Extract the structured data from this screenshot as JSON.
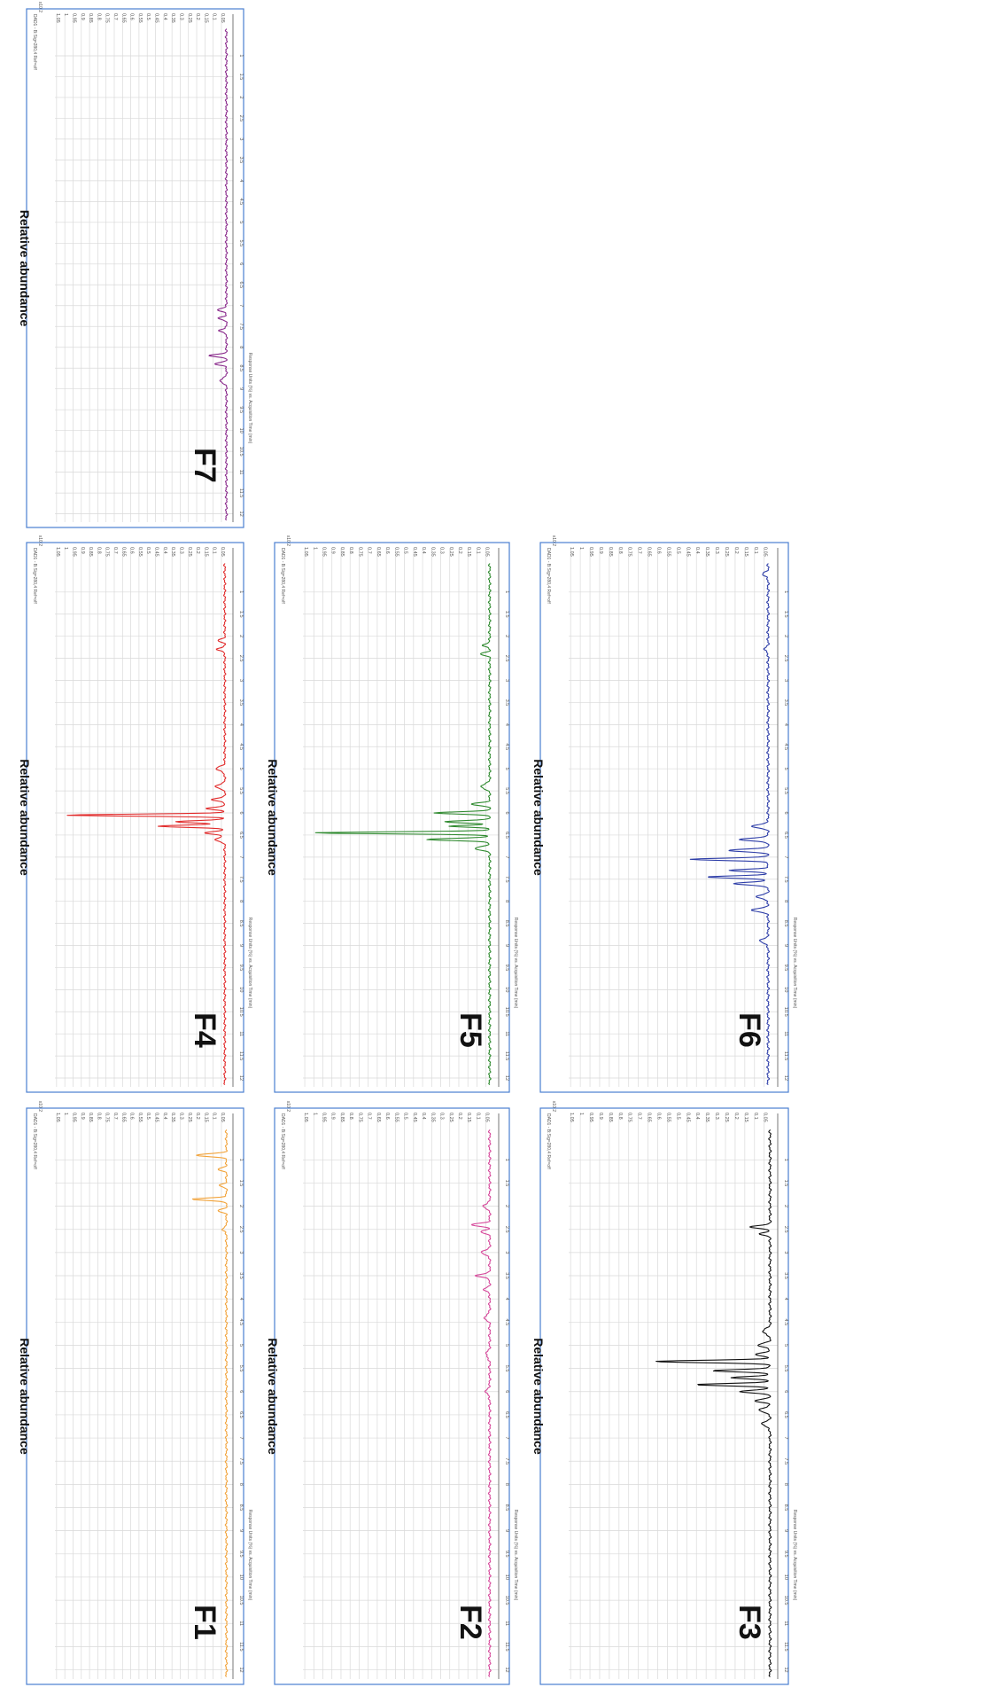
{
  "chart_data": [
    {
      "type": "line",
      "panel_label": "F1",
      "ylabel": "Relative abundance",
      "xlabel": "Response Units (%) vs. Acquisition Time (min)",
      "header": "DAD1 - B:Sig=280,4 Ref=off",
      "scale_note": "x10 2",
      "color": "#f2a33a",
      "xlim": [
        0,
        12.2
      ],
      "ylim": [
        -0.02,
        1.06
      ],
      "xticks": [
        "1",
        "1.5",
        "2",
        "2.5",
        "3",
        "3.5",
        "4",
        "4.5",
        "5",
        "5.5",
        "6",
        "6.5",
        "7",
        "7.5",
        "8",
        "8.5",
        "9",
        "9.5",
        "10",
        "10.5",
        "11",
        "11.5",
        "12"
      ],
      "yticks": [
        "0.05",
        "0.1",
        "0.15",
        "0.2",
        "0.25",
        "0.3",
        "0.35",
        "0.4",
        "0.45",
        "0.5",
        "0.55",
        "0.6",
        "0.65",
        "0.7",
        "0.75",
        "0.8",
        "0.85",
        "0.9",
        "0.95",
        "1",
        "1.05"
      ],
      "baseline": 0.02,
      "peaks": [
        [
          0.9,
          0.18,
          0.03
        ],
        [
          1.2,
          0.05,
          0.03
        ],
        [
          1.55,
          0.04,
          0.03
        ],
        [
          1.85,
          0.21,
          0.025
        ],
        [
          2.1,
          0.05,
          0.03
        ],
        [
          2.5,
          0.03,
          0.03
        ]
      ]
    },
    {
      "type": "line",
      "panel_label": "F2",
      "ylabel": "Relative abundance",
      "xlabel": "Response Units (%) vs. Acquisition Time (min)",
      "header": "DAD1 - B:Sig=280,4 Ref=off",
      "scale_note": "x10 2",
      "color": "#d6479a",
      "xlim": [
        0,
        12.2
      ],
      "ylim": [
        -0.02,
        1.06
      ],
      "xticks": [
        "1",
        "1.5",
        "2",
        "2.5",
        "3",
        "3.5",
        "4",
        "4.5",
        "5",
        "5.5",
        "6",
        "6.5",
        "7",
        "7.5",
        "8",
        "8.5",
        "9",
        "9.5",
        "10",
        "10.5",
        "11",
        "11.5",
        "12"
      ],
      "yticks": [
        "0.05",
        "0.1",
        "0.15",
        "0.2",
        "0.25",
        "0.3",
        "0.35",
        "0.4",
        "0.45",
        "0.5",
        "0.55",
        "0.6",
        "0.65",
        "0.7",
        "0.75",
        "0.8",
        "0.85",
        "0.9",
        "0.95",
        "1",
        "1.05"
      ],
      "baseline": 0.03,
      "peaks": [
        [
          2.0,
          0.04,
          0.04
        ],
        [
          2.4,
          0.1,
          0.03
        ],
        [
          2.55,
          0.05,
          0.03
        ],
        [
          3.0,
          0.05,
          0.04
        ],
        [
          3.5,
          0.08,
          0.03
        ],
        [
          3.8,
          0.03,
          0.04
        ],
        [
          4.4,
          0.03,
          0.05
        ],
        [
          5.2,
          0.02,
          0.06
        ],
        [
          6.0,
          0.02,
          0.06
        ]
      ]
    },
    {
      "type": "line",
      "panel_label": "F3",
      "ylabel": "Relative abundance",
      "xlabel": "Response Units (%) vs. Acquisition Time (min)",
      "header": "DAD1 - B:Sig=280,4 Ref=off",
      "scale_note": "x10 2",
      "color": "#111111",
      "xlim": [
        0,
        12.2
      ],
      "ylim": [
        -0.02,
        1.06
      ],
      "xticks": [
        "1",
        "1.5",
        "2",
        "2.5",
        "3",
        "3.5",
        "4",
        "4.5",
        "5",
        "5.5",
        "6",
        "6.5",
        "7",
        "7.5",
        "8",
        "8.5",
        "9",
        "9.5",
        "10",
        "10.5",
        "11",
        "11.5",
        "12"
      ],
      "yticks": [
        "0.05",
        "0.1",
        "0.15",
        "0.2",
        "0.25",
        "0.3",
        "0.35",
        "0.4",
        "0.45",
        "0.5",
        "0.55",
        "0.6",
        "0.65",
        "0.7",
        "0.75",
        "0.8",
        "0.85",
        "0.9",
        "0.95",
        "1",
        "1.05"
      ],
      "baseline": 0.02,
      "peaks": [
        [
          2.45,
          0.1,
          0.03
        ],
        [
          2.6,
          0.05,
          0.03
        ],
        [
          4.7,
          0.04,
          0.05
        ],
        [
          5.0,
          0.06,
          0.04
        ],
        [
          5.2,
          0.08,
          0.03
        ],
        [
          5.35,
          0.6,
          0.025
        ],
        [
          5.55,
          0.3,
          0.025
        ],
        [
          5.7,
          0.2,
          0.025
        ],
        [
          5.85,
          0.38,
          0.025
        ],
        [
          6.0,
          0.15,
          0.03
        ],
        [
          6.2,
          0.08,
          0.03
        ],
        [
          6.4,
          0.06,
          0.04
        ],
        [
          6.7,
          0.04,
          0.05
        ]
      ]
    },
    {
      "type": "line",
      "panel_label": "F4",
      "ylabel": "Relative abundance",
      "xlabel": "Response Units (%) vs. Acquisition Time (min)",
      "header": "DAD1 - B:Sig=280,4 Ref=off",
      "scale_note": "x10 2",
      "color": "#e12b2b",
      "xlim": [
        0,
        12.2
      ],
      "ylim": [
        -0.02,
        1.06
      ],
      "xticks": [
        "1",
        "1.5",
        "2",
        "2.5",
        "3",
        "3.5",
        "4",
        "4.5",
        "5",
        "5.5",
        "6",
        "6.5",
        "7",
        "7.5",
        "8",
        "8.5",
        "9",
        "9.5",
        "10",
        "10.5",
        "11",
        "11.5",
        "12"
      ],
      "yticks": [
        "0.05",
        "0.1",
        "0.15",
        "0.2",
        "0.25",
        "0.3",
        "0.35",
        "0.4",
        "0.45",
        "0.5",
        "0.55",
        "0.6",
        "0.65",
        "0.7",
        "0.75",
        "0.8",
        "0.85",
        "0.9",
        "0.95",
        "1",
        "1.05"
      ],
      "baseline": 0.03,
      "peaks": [
        [
          2.1,
          0.04,
          0.03
        ],
        [
          2.3,
          0.05,
          0.03
        ],
        [
          5.0,
          0.05,
          0.05
        ],
        [
          5.4,
          0.06,
          0.04
        ],
        [
          5.7,
          0.08,
          0.03
        ],
        [
          5.9,
          0.12,
          0.025
        ],
        [
          6.05,
          0.97,
          0.022
        ],
        [
          6.2,
          0.3,
          0.025
        ],
        [
          6.3,
          0.4,
          0.025
        ],
        [
          6.45,
          0.12,
          0.03
        ],
        [
          6.6,
          0.06,
          0.04
        ]
      ]
    },
    {
      "type": "line",
      "panel_label": "F5",
      "ylabel": "Relative abundance",
      "xlabel": "Response Units (%) vs. Acquisition Time (min)",
      "header": "DAD1 - B:Sig=280,4 Ref=off",
      "scale_note": "x10 2",
      "color": "#2f8a2f",
      "xlim": [
        0,
        12.2
      ],
      "ylim": [
        -0.02,
        1.06
      ],
      "xticks": [
        "1",
        "1.5",
        "2",
        "2.5",
        "3",
        "3.5",
        "4",
        "4.5",
        "5",
        "5.5",
        "6",
        "6.5",
        "7",
        "7.5",
        "8",
        "8.5",
        "9",
        "9.5",
        "10",
        "10.5",
        "11",
        "11.5",
        "12"
      ],
      "yticks": [
        "0.05",
        "0.1",
        "0.15",
        "0.2",
        "0.25",
        "0.3",
        "0.35",
        "0.4",
        "0.45",
        "0.5",
        "0.55",
        "0.6",
        "0.65",
        "0.7",
        "0.75",
        "0.8",
        "0.85",
        "0.9",
        "0.95",
        "1",
        "1.05"
      ],
      "baseline": 0.03,
      "peaks": [
        [
          2.2,
          0.04,
          0.03
        ],
        [
          2.4,
          0.05,
          0.03
        ],
        [
          5.4,
          0.05,
          0.05
        ],
        [
          5.8,
          0.1,
          0.03
        ],
        [
          6.0,
          0.3,
          0.025
        ],
        [
          6.2,
          0.25,
          0.025
        ],
        [
          6.3,
          0.22,
          0.02
        ],
        [
          6.45,
          0.97,
          0.022
        ],
        [
          6.6,
          0.35,
          0.025
        ],
        [
          6.8,
          0.08,
          0.04
        ]
      ]
    },
    {
      "type": "line",
      "panel_label": "F6",
      "ylabel": "Relative abundance",
      "xlabel": "Response Units (%) vs. Acquisition Time (min)",
      "header": "DAD1 - B:Sig=280,4 Ref=off",
      "scale_note": "x10 2",
      "color": "#2e3ea8",
      "xlim": [
        0,
        12.2
      ],
      "ylim": [
        -0.02,
        1.06
      ],
      "xticks": [
        "1",
        "1.5",
        "2",
        "2.5",
        "3",
        "3.5",
        "4",
        "4.5",
        "5",
        "5.5",
        "6",
        "6.5",
        "7",
        "7.5",
        "8",
        "8.5",
        "9",
        "9.5",
        "10",
        "10.5",
        "11",
        "11.5",
        "12"
      ],
      "yticks": [
        "0.05",
        "0.1",
        "0.15",
        "0.2",
        "0.25",
        "0.3",
        "0.35",
        "0.4",
        "0.45",
        "0.5",
        "0.55",
        "0.6",
        "0.65",
        "0.7",
        "0.75",
        "0.8",
        "0.85",
        "0.9",
        "0.95",
        "1",
        "1.05"
      ],
      "baseline": 0.03,
      "peaks": [
        [
          0.6,
          0.03,
          0.04
        ],
        [
          2.3,
          0.02,
          0.04
        ],
        [
          6.3,
          0.08,
          0.04
        ],
        [
          6.6,
          0.15,
          0.03
        ],
        [
          6.85,
          0.2,
          0.03
        ],
        [
          7.05,
          0.4,
          0.025
        ],
        [
          7.3,
          0.2,
          0.025
        ],
        [
          7.45,
          0.32,
          0.025
        ],
        [
          7.6,
          0.18,
          0.03
        ],
        [
          7.9,
          0.06,
          0.04
        ],
        [
          8.2,
          0.08,
          0.04
        ],
        [
          8.9,
          0.04,
          0.05
        ]
      ]
    },
    {
      "type": "line",
      "panel_label": "F7",
      "ylabel": "Relative abundance",
      "xlabel": "Response Units (%) vs. Acquisition Time (min)",
      "header": "DAD1 - B:Sig=280,4 Ref=off",
      "scale_note": "x10 2",
      "color": "#8a2b8c",
      "xlim": [
        0,
        12.2
      ],
      "ylim": [
        -0.02,
        1.06
      ],
      "xticks": [
        "1",
        "1.5",
        "2",
        "2.5",
        "3",
        "3.5",
        "4",
        "4.5",
        "5",
        "5.5",
        "6",
        "6.5",
        "7",
        "7.5",
        "8",
        "8.5",
        "9",
        "9.5",
        "10",
        "10.5",
        "11",
        "11.5",
        "12"
      ],
      "yticks": [
        "0.05",
        "0.1",
        "0.15",
        "0.2",
        "0.25",
        "0.3",
        "0.35",
        "0.4",
        "0.45",
        "0.5",
        "0.55",
        "0.6",
        "0.65",
        "0.7",
        "0.75",
        "0.8",
        "0.85",
        "0.9",
        "0.95",
        "1",
        "1.05"
      ],
      "baseline": 0.02,
      "peaks": [
        [
          7.1,
          0.06,
          0.03
        ],
        [
          7.3,
          0.05,
          0.03
        ],
        [
          7.6,
          0.05,
          0.03
        ],
        [
          8.2,
          0.1,
          0.03
        ],
        [
          8.4,
          0.07,
          0.03
        ],
        [
          8.8,
          0.04,
          0.05
        ]
      ]
    }
  ]
}
